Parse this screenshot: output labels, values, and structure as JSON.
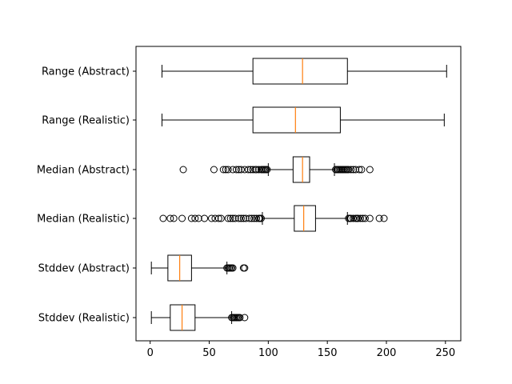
{
  "chart_data": {
    "type": "boxplot",
    "orientation": "horizontal",
    "title": "",
    "xlabel": "",
    "ylabel": "",
    "xlim": [
      -12,
      263
    ],
    "xticks": [
      0,
      50,
      100,
      150,
      200,
      250
    ],
    "grid": false,
    "colors": {
      "median": "#ff7f0e",
      "box": "#000000",
      "outlier": "#000000"
    },
    "categories": [
      "Range (Abstract)",
      "Range (Realistic)",
      "Median (Abstract)",
      "Median (Realistic)",
      "Stddev (Abstract)",
      "Stddev (Realistic)"
    ],
    "boxes": [
      {
        "label": "Range (Abstract)",
        "whisker_low": 10,
        "q1": 87,
        "median": 129,
        "q3": 167,
        "whisker_high": 251,
        "outliers": []
      },
      {
        "label": "Range (Realistic)",
        "whisker_low": 10,
        "q1": 87,
        "median": 123,
        "q3": 161,
        "whisker_high": 249,
        "outliers": []
      },
      {
        "label": "Median (Abstract)",
        "whisker_low": 100,
        "q1": 121,
        "median": 129,
        "q3": 135,
        "whisker_high": 156,
        "outliers": [
          28,
          54,
          62,
          64,
          66,
          70,
          73,
          75,
          77,
          80,
          83,
          85,
          87,
          89,
          90,
          92,
          94,
          95,
          96,
          97,
          98,
          99,
          157,
          158,
          159,
          160,
          161,
          162,
          163,
          164,
          165,
          166,
          167,
          168,
          170,
          172,
          174,
          177,
          179,
          186
        ]
      },
      {
        "label": "Median (Realistic)",
        "whisker_low": 95,
        "q1": 122,
        "median": 130,
        "q3": 140,
        "whisker_high": 167,
        "outliers": [
          11,
          17,
          20,
          27,
          35,
          38,
          41,
          46,
          52,
          55,
          58,
          60,
          66,
          68,
          70,
          72,
          75,
          77,
          79,
          81,
          84,
          86,
          88,
          90,
          92,
          93,
          94,
          168,
          169,
          170,
          172,
          174,
          175,
          176,
          178,
          180,
          182,
          186,
          194,
          198
        ]
      },
      {
        "label": "Stddev (Abstract)",
        "whisker_low": 1,
        "q1": 15,
        "median": 25,
        "q3": 35,
        "whisker_high": 65,
        "outliers": [
          65,
          66,
          67,
          68,
          69,
          70,
          79,
          80
        ]
      },
      {
        "label": "Stddev (Realistic)",
        "whisker_low": 1,
        "q1": 17,
        "median": 27,
        "q3": 38,
        "whisker_high": 69,
        "outliers": [
          69,
          70,
          71,
          72,
          73,
          74,
          75,
          76,
          80
        ]
      }
    ]
  }
}
